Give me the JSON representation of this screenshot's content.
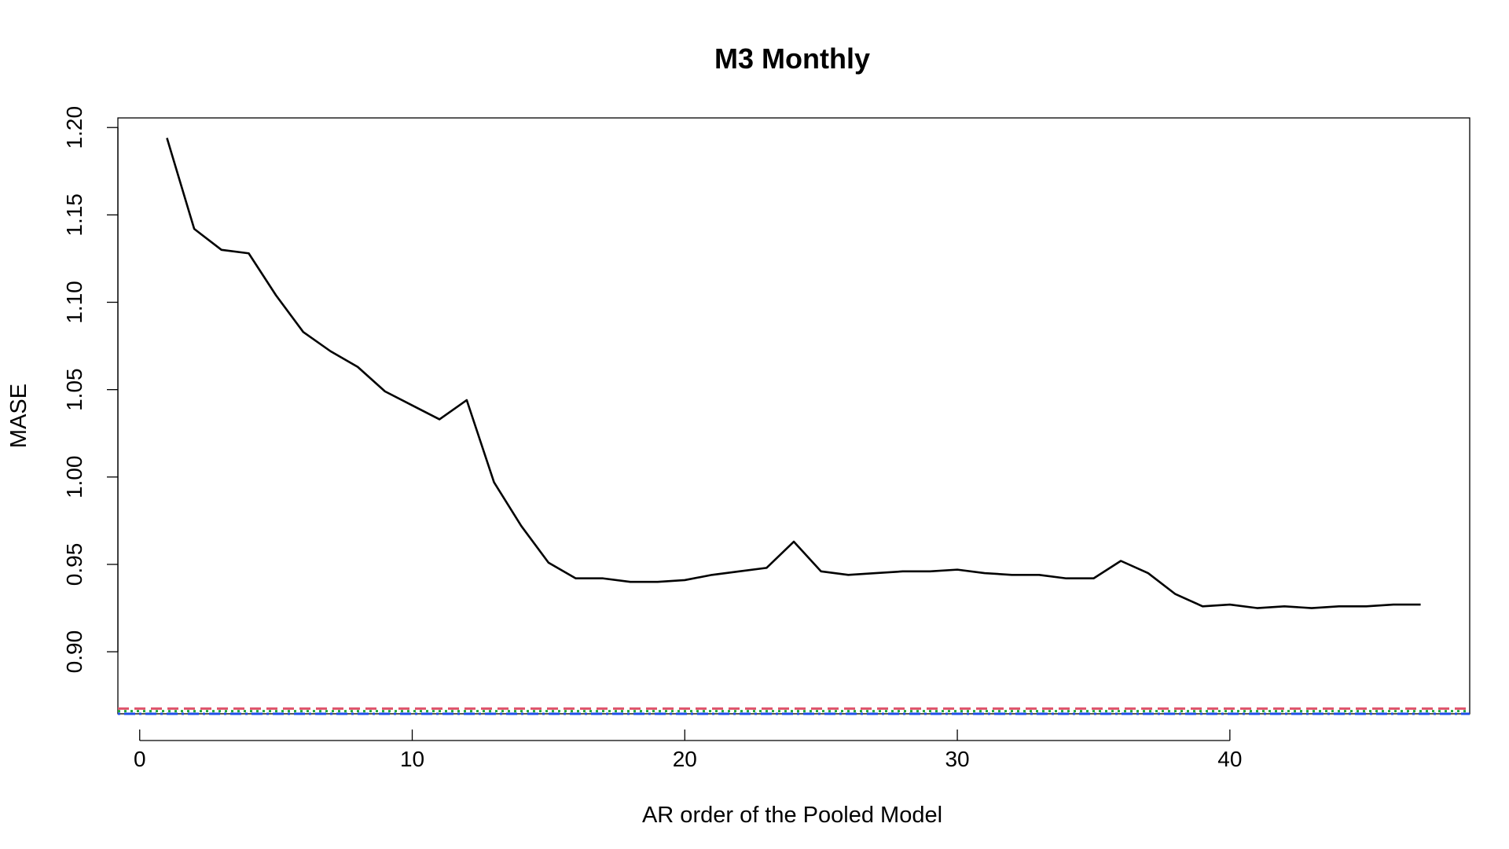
{
  "chart_data": {
    "type": "line",
    "title": "M3 Monthly",
    "xlabel": "AR order of the Pooled Model",
    "ylabel": "MASE",
    "xlim": [
      -0.8,
      48.8
    ],
    "ylim": [
      0.8645,
      1.2055
    ],
    "xticks": [
      0,
      10,
      20,
      30,
      40
    ],
    "xtick_labels": [
      "0",
      "10",
      "20",
      "30",
      "40"
    ],
    "yticks": [
      0.9,
      0.95,
      1.0,
      1.05,
      1.1,
      1.15,
      1.2
    ],
    "ytick_labels": [
      "0.90",
      "0.95",
      "1.00",
      "1.05",
      "1.10",
      "1.15",
      "1.20"
    ],
    "grid": false,
    "series": [
      {
        "color": "#000000",
        "line_style": "solid",
        "x": [
          1,
          2,
          3,
          4,
          5,
          6,
          7,
          8,
          9,
          10,
          11,
          12,
          13,
          14,
          15,
          16,
          17,
          18,
          19,
          20,
          21,
          22,
          23,
          24,
          25,
          26,
          27,
          28,
          29,
          30,
          31,
          32,
          33,
          34,
          35,
          36,
          37,
          38,
          39,
          40,
          41,
          42,
          43,
          44,
          45,
          46,
          47
        ],
        "values": [
          1.194,
          1.142,
          1.13,
          1.128,
          1.104,
          1.083,
          1.072,
          1.063,
          1.049,
          1.041,
          1.033,
          1.044,
          0.997,
          0.972,
          0.951,
          0.942,
          0.942,
          0.94,
          0.94,
          0.941,
          0.944,
          0.946,
          0.948,
          0.963,
          0.946,
          0.944,
          0.945,
          0.946,
          0.946,
          0.947,
          0.945,
          0.944,
          0.944,
          0.942,
          0.942,
          0.952,
          0.945,
          0.933,
          0.926,
          0.927,
          0.925,
          0.926,
          0.925,
          0.926,
          0.926,
          0.927,
          0.927
        ]
      }
    ],
    "reference_lines": [
      {
        "color": "#df536b",
        "line_style": "dashed",
        "y": 0.8675
      },
      {
        "color": "#22a63a",
        "line_style": "dotted",
        "y": 0.866
      },
      {
        "color": "#1f4fe8",
        "line_style": "dotdash",
        "y": 0.8645
      }
    ]
  }
}
